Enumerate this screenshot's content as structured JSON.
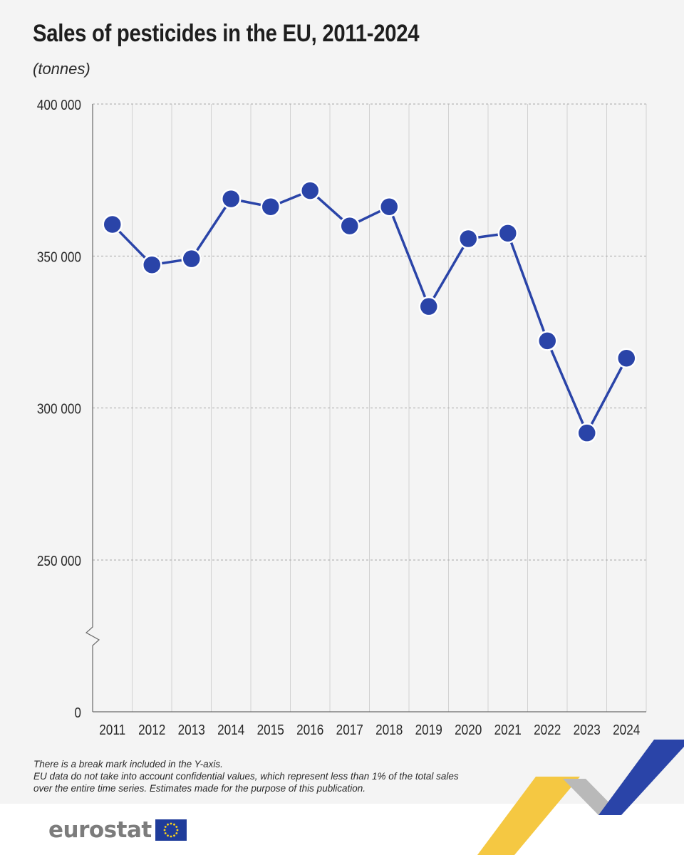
{
  "header": {
    "title": "Sales of pesticides in the EU, 2011-2024",
    "unit": "(tonnes)"
  },
  "chart_data": {
    "type": "line",
    "title": "Sales of pesticides in the EU, 2011-2024",
    "subtitle": "(tonnes)",
    "xlabel": "",
    "ylabel": "",
    "categories": [
      "2011",
      "2012",
      "2013",
      "2014",
      "2015",
      "2016",
      "2017",
      "2018",
      "2019",
      "2020",
      "2021",
      "2022",
      "2023",
      "2024"
    ],
    "series": [
      {
        "values": [
          360400,
          347100,
          349100,
          368800,
          366200,
          371500,
          359900,
          366200,
          333400,
          355700,
          357500,
          322100,
          291800,
          316400
        ]
      }
    ],
    "ylim": [
      0,
      400000
    ],
    "axis_break": [
      0,
      225000
    ],
    "y_ticks": [
      0,
      250000,
      300000,
      350000,
      400000
    ],
    "y_tick_labels": [
      "0",
      "250 000",
      "300 000",
      "350 000",
      "400 000"
    ],
    "grid": true,
    "legend": "none",
    "line_color": "#2a44a8"
  },
  "footnotes": [
    "There is a break mark included in the Y-axis.",
    "EU data do not take into account confidential values, which represent less than 1% of the total sales",
    "over the entire time series. Estimates made for the purpose of this publication."
  ],
  "brand": {
    "logo_text": "eurostat",
    "flag_icon": "eu-flag-icon",
    "colors": {
      "flag_blue": "#1f3c9a",
      "flag_star": "#ffd617",
      "accent_blue": "#2a44a8",
      "accent_yellow": "#f5c842"
    }
  }
}
